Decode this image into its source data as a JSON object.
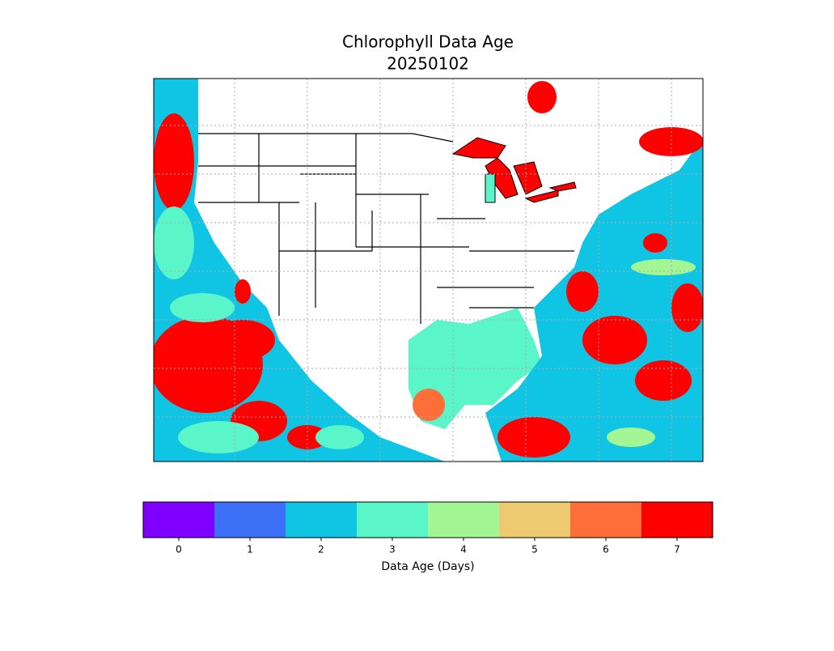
{
  "title": "Chlorophyll Data Age",
  "subtitle": "20250102",
  "colorbar": {
    "label": "Data Age (Days)",
    "ticks": [
      0,
      1,
      2,
      3,
      4,
      5,
      6,
      7
    ],
    "colors": [
      "#7f00ff",
      "#3d70f7",
      "#10c5e4",
      "#5af5c9",
      "#a4f695",
      "#edc970",
      "#ff6d39",
      "#ff0000"
    ]
  }
}
